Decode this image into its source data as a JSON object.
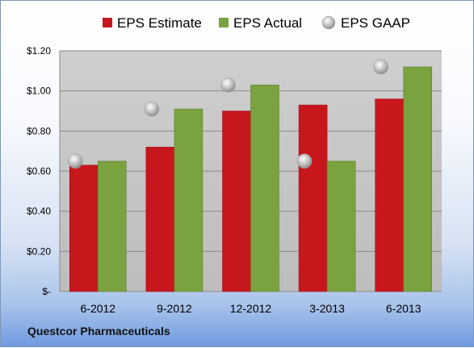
{
  "footer": "Questcor Pharmaceuticals",
  "colors": {
    "estimate": "#c8161d",
    "actual": "#7aa23f",
    "gaap": "#a8a8a8",
    "plot_bg": "#c9c9c9"
  },
  "chart_data": {
    "type": "bar",
    "categories": [
      "6-2012",
      "9-2012",
      "12-2012",
      "3-2013",
      "6-2013"
    ],
    "series": [
      {
        "name": "EPS Estimate",
        "type": "bar",
        "values": [
          0.63,
          0.72,
          0.9,
          0.93,
          0.96
        ]
      },
      {
        "name": "EPS Actual",
        "type": "bar",
        "values": [
          0.65,
          0.91,
          1.03,
          0.65,
          1.12
        ]
      },
      {
        "name": "EPS GAAP",
        "type": "scatter",
        "values": [
          0.65,
          0.91,
          1.03,
          0.65,
          1.12
        ]
      }
    ],
    "y_ticks": [
      "$-",
      "$0.20",
      "$0.40",
      "$0.60",
      "$0.80",
      "$1.00",
      "$1.20"
    ],
    "y_tick_values": [
      0,
      0.2,
      0.4,
      0.6,
      0.8,
      1.0,
      1.2
    ],
    "ylim": [
      0,
      1.2
    ],
    "grid": true,
    "legend_position": "top"
  }
}
